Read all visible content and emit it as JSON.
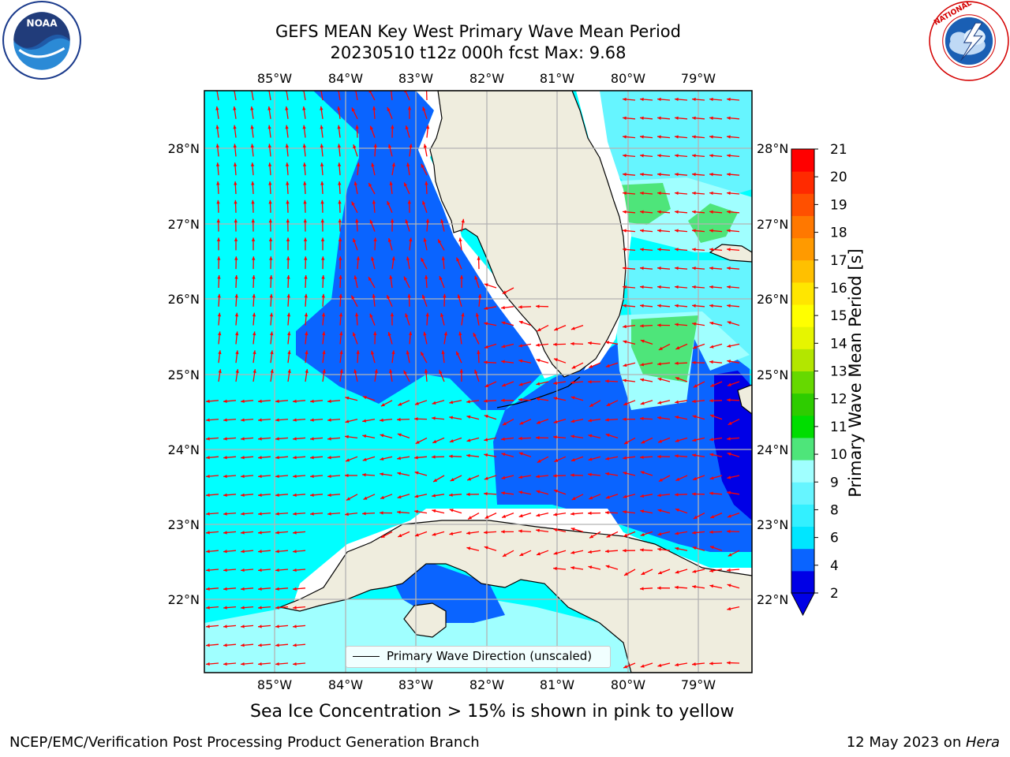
{
  "header": {
    "title_line1": "GEFS MEAN Key West Primary Wave Mean Period",
    "title_line2": "20230510 t12z 000h fcst   Max: 9.68"
  },
  "logos": {
    "left": {
      "icon": "noaa-logo",
      "text": "NOAA"
    },
    "right": {
      "icon": "national-weather-service-logo",
      "text": "NATIONAL WEATHER SERVICE"
    }
  },
  "map": {
    "lon_labels": [
      "85°W",
      "84°W",
      "83°W",
      "82°W",
      "81°W",
      "80°W",
      "79°W"
    ],
    "lat_labels": [
      "28°N",
      "27°N",
      "26°N",
      "25°N",
      "24°N",
      "23°N",
      "22°N"
    ],
    "lon_range": [
      -86.0,
      -78.3
    ],
    "lat_range": [
      21.0,
      28.75
    ],
    "arrow_color": "#ff0000",
    "land_color": "#efedde",
    "legend_label": "Primary Wave Direction (unscaled)"
  },
  "colorbar": {
    "label": "Primary Wave Mean Period [s]",
    "ticks": [
      "21",
      "20",
      "19",
      "18",
      "17",
      "16",
      "15",
      "14",
      "13",
      "12",
      "11",
      "10",
      "9",
      "8",
      "6",
      "4",
      "2"
    ],
    "colors": [
      "#0000e6",
      "#0a64ff",
      "#00e6ff",
      "#33f0ff",
      "#66f5ff",
      "#a0ffff",
      "#4ee57a",
      "#00dd00",
      "#2ecc00",
      "#66d900",
      "#b3e600",
      "#e6f500",
      "#ffff00",
      "#ffe600",
      "#ffc000",
      "#ff9a00",
      "#ff7800",
      "#ff5000",
      "#ff2a00",
      "#ff0000"
    ]
  },
  "caption": "Sea Ice Concentration > 15% is shown in pink to yellow",
  "footer": {
    "left": "NCEP/EMC/Verification Post Processing Product Generation Branch",
    "right_prefix": "12 May 2023 on ",
    "right_italic": "Hera"
  }
}
